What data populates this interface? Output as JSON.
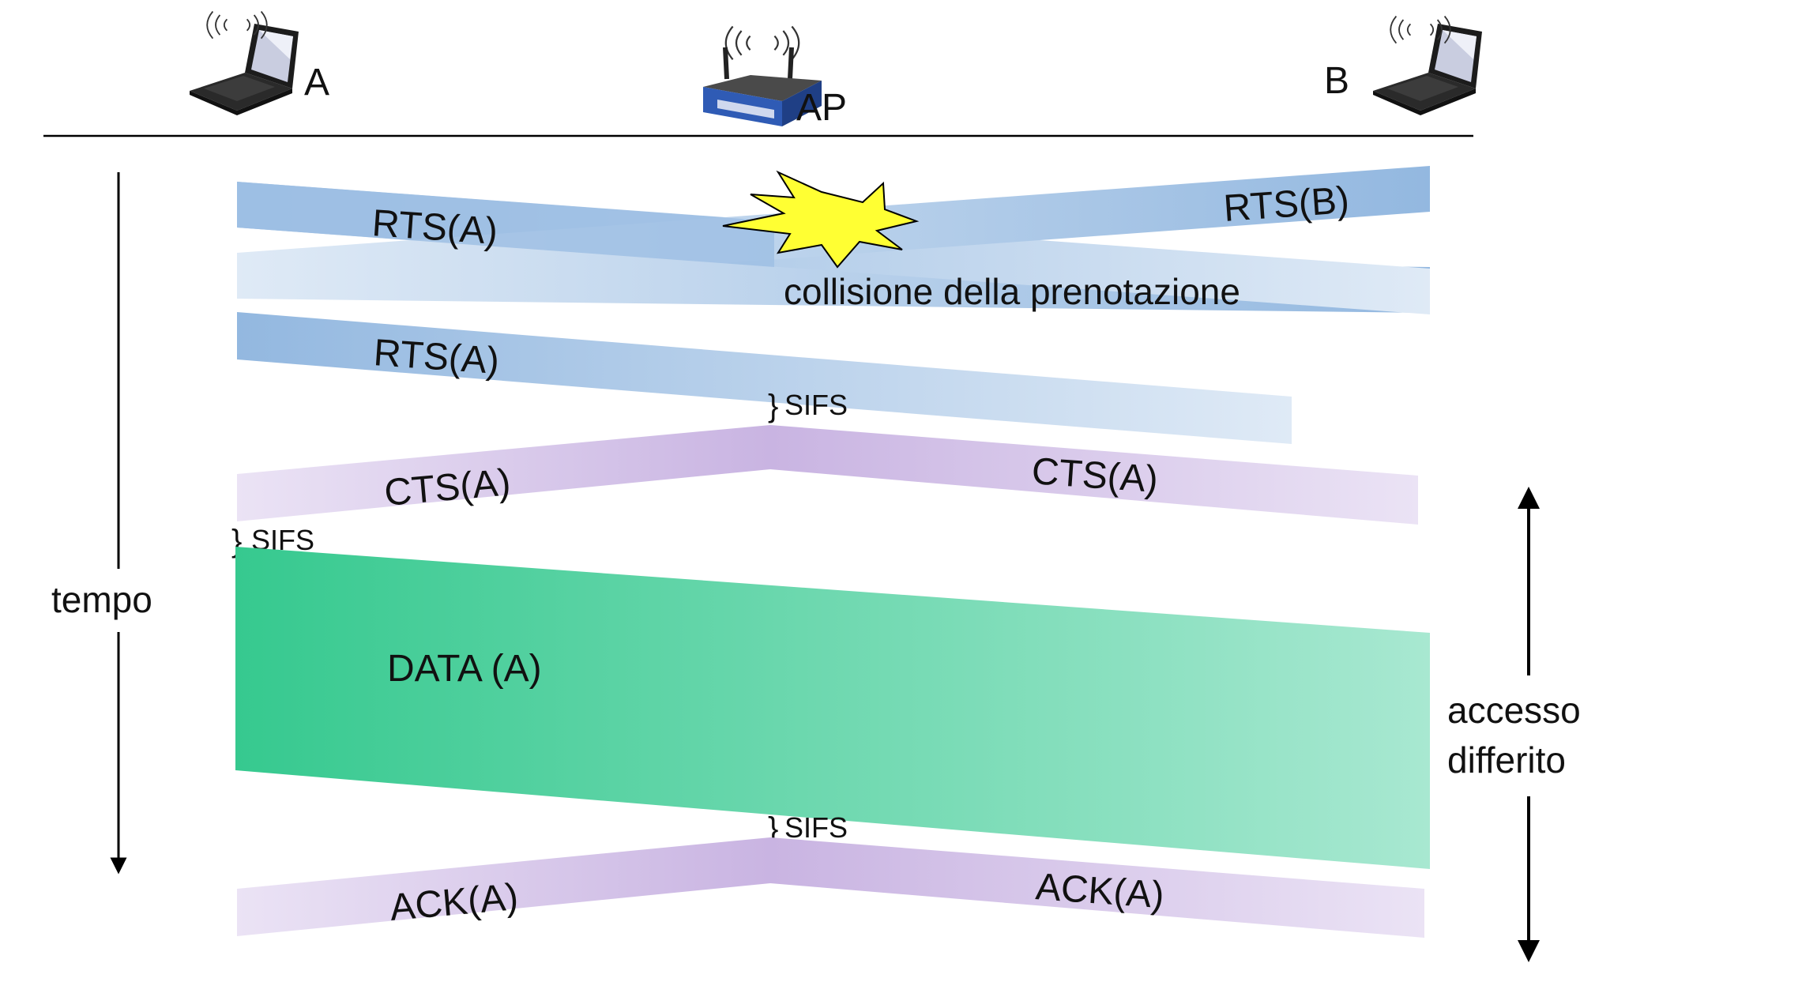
{
  "nodes": {
    "a": "A",
    "ap": "AP",
    "b": "B"
  },
  "axis": {
    "time": "tempo"
  },
  "frames": {
    "rts_a_1": "RTS(A)",
    "rts_b": "RTS(B)",
    "collision": "collisione della prenotazione",
    "rts_a_2": "RTS(A)",
    "sifs_1": "SIFS",
    "cts_left": "CTS(A)",
    "cts_right": "CTS(A)",
    "sifs_2": "SIFS",
    "data": "DATA (A)",
    "sifs_3": "SIFS",
    "ack_left": "ACK(A)",
    "ack_right": "ACK(A)"
  },
  "deferred_access": {
    "line1": "accesso",
    "line2": "differito"
  },
  "colors": {
    "rts": "#9dbfe3",
    "rts_light": "#dde8f5",
    "cts_ack": "#cfbde6",
    "cts_ack_light": "#ece5f5",
    "data": "#3cc994",
    "data_light": "#a4e6cf",
    "burst": "#ffff33"
  }
}
